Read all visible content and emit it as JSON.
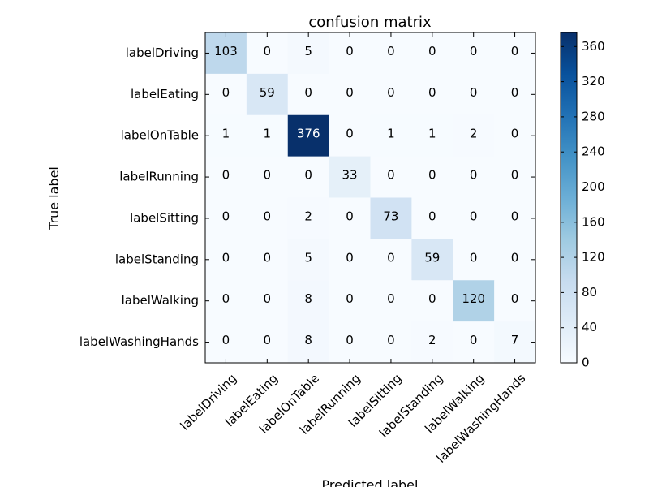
{
  "chart_data": {
    "type": "heatmap",
    "title": "confusion matrix",
    "xlabel": "Predicted label",
    "ylabel": "True label",
    "x_categories": [
      "labelDriving",
      "labelEating",
      "labelOnTable",
      "labelRunning",
      "labelSitting",
      "labelStanding",
      "labelWalking",
      "labelWashingHands"
    ],
    "y_categories": [
      "labelDriving",
      "labelEating",
      "labelOnTable",
      "labelRunning",
      "labelSitting",
      "labelStanding",
      "labelWalking",
      "labelWashingHands"
    ],
    "values": [
      [
        103,
        0,
        5,
        0,
        0,
        0,
        0,
        0
      ],
      [
        0,
        59,
        0,
        0,
        0,
        0,
        0,
        0
      ],
      [
        1,
        1,
        376,
        0,
        1,
        1,
        2,
        0
      ],
      [
        0,
        0,
        0,
        33,
        0,
        0,
        0,
        0
      ],
      [
        0,
        0,
        2,
        0,
        73,
        0,
        0,
        0
      ],
      [
        0,
        0,
        5,
        0,
        0,
        59,
        0,
        0
      ],
      [
        0,
        0,
        8,
        0,
        0,
        0,
        120,
        0
      ],
      [
        0,
        0,
        8,
        0,
        0,
        2,
        0,
        7
      ]
    ],
    "colormap": "Blues",
    "color_range": [
      0,
      376
    ],
    "colorbar_ticks": [
      0,
      40,
      80,
      120,
      160,
      200,
      240,
      280,
      320,
      360
    ],
    "grid": false
  }
}
